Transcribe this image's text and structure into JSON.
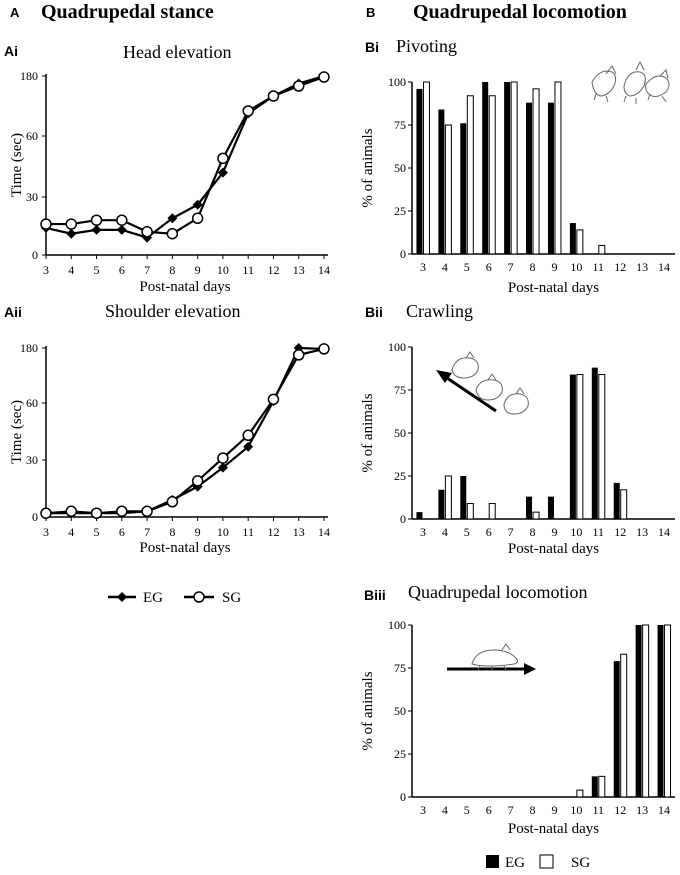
{
  "headers": {
    "a_letter": "A",
    "a_title": "Quadrupedal stance",
    "b_letter": "B",
    "b_title": "Quadrupedal locomotion"
  },
  "legend_line": {
    "eg": "EG",
    "sg": "SG"
  },
  "legend_bar": {
    "eg": "EG",
    "sg": "SG"
  },
  "chart_data": [
    {
      "id": "Ai",
      "panel_label": "Ai",
      "type": "line",
      "title": "Head elevation",
      "xlabel": "Post-natal days",
      "ylabel": "Time (sec)",
      "x": [
        3,
        4,
        5,
        6,
        7,
        8,
        9,
        10,
        11,
        12,
        13,
        14
      ],
      "ytick_labels": [
        "0",
        "30",
        "60",
        "180"
      ],
      "series": [
        {
          "name": "EG",
          "marker": "diamond",
          "values": [
            14,
            11,
            13,
            13,
            9,
            19,
            26,
            42,
            105,
            140,
            165,
            180
          ]
        },
        {
          "name": "SG",
          "marker": "circle",
          "values": [
            16,
            16,
            18,
            18,
            12,
            11,
            19,
            49,
            110,
            140,
            160,
            178
          ]
        }
      ]
    },
    {
      "id": "Aii",
      "panel_label": "Aii",
      "type": "line",
      "title": "Shoulder elevation",
      "xlabel": "Post-natal days",
      "ylabel": "Time (sec)",
      "x": [
        3,
        4,
        5,
        6,
        7,
        8,
        9,
        10,
        11,
        12,
        13,
        14
      ],
      "ytick_labels": [
        "0",
        "30",
        "60",
        "180"
      ],
      "series": [
        {
          "name": "EG",
          "marker": "diamond",
          "values": [
            2,
            2,
            2,
            2,
            3,
            9,
            16,
            26,
            37,
            64,
            180,
            178
          ]
        },
        {
          "name": "SG",
          "marker": "circle",
          "values": [
            2,
            3,
            2,
            3,
            3,
            8,
            19,
            31,
            43,
            68,
            165,
            178
          ]
        }
      ]
    },
    {
      "id": "Bi",
      "panel_label": "Bi",
      "type": "bar",
      "title": "Pivoting",
      "xlabel": "Post-natal days",
      "ylabel": "% of animals",
      "categories": [
        "3",
        "4",
        "5",
        "6",
        "7",
        "8",
        "9",
        "10",
        "11",
        "12",
        "13",
        "14"
      ],
      "ylim": [
        0,
        100
      ],
      "yticks": [
        0,
        25,
        50,
        75,
        100
      ],
      "series": [
        {
          "name": "EG",
          "values": [
            96,
            84,
            76,
            100,
            100,
            88,
            88,
            18,
            0,
            0,
            0,
            0
          ]
        },
        {
          "name": "SG",
          "values": [
            100,
            75,
            92,
            92,
            100,
            96,
            100,
            14,
            5,
            0,
            0,
            0
          ]
        }
      ]
    },
    {
      "id": "Bii",
      "panel_label": "Bii",
      "type": "bar",
      "title": "Crawling",
      "xlabel": "Post-natal days",
      "ylabel": "% of animals",
      "categories": [
        "3",
        "4",
        "5",
        "6",
        "7",
        "8",
        "9",
        "10",
        "11",
        "12",
        "13",
        "14"
      ],
      "ylim": [
        0,
        100
      ],
      "yticks": [
        0,
        25,
        50,
        75,
        100
      ],
      "series": [
        {
          "name": "EG",
          "values": [
            4,
            17,
            25,
            0,
            0,
            13,
            13,
            84,
            88,
            21,
            0,
            0
          ]
        },
        {
          "name": "SG",
          "values": [
            0,
            25,
            9,
            9,
            0,
            4,
            0,
            84,
            84,
            17,
            0,
            0
          ]
        }
      ]
    },
    {
      "id": "Biii",
      "panel_label": "Biii",
      "type": "bar",
      "title": "Quadrupedal locomotion",
      "xlabel": "Post-natal days",
      "ylabel": "% of animals",
      "categories": [
        "3",
        "4",
        "5",
        "6",
        "7",
        "8",
        "9",
        "10",
        "11",
        "12",
        "13",
        "14"
      ],
      "ylim": [
        0,
        100
      ],
      "yticks": [
        0,
        25,
        50,
        75,
        100
      ],
      "series": [
        {
          "name": "EG",
          "values": [
            0,
            0,
            0,
            0,
            0,
            0,
            0,
            0,
            12,
            79,
            100,
            100
          ]
        },
        {
          "name": "SG",
          "values": [
            0,
            0,
            0,
            0,
            0,
            0,
            0,
            4,
            12,
            83,
            100,
            100
          ]
        }
      ]
    }
  ]
}
